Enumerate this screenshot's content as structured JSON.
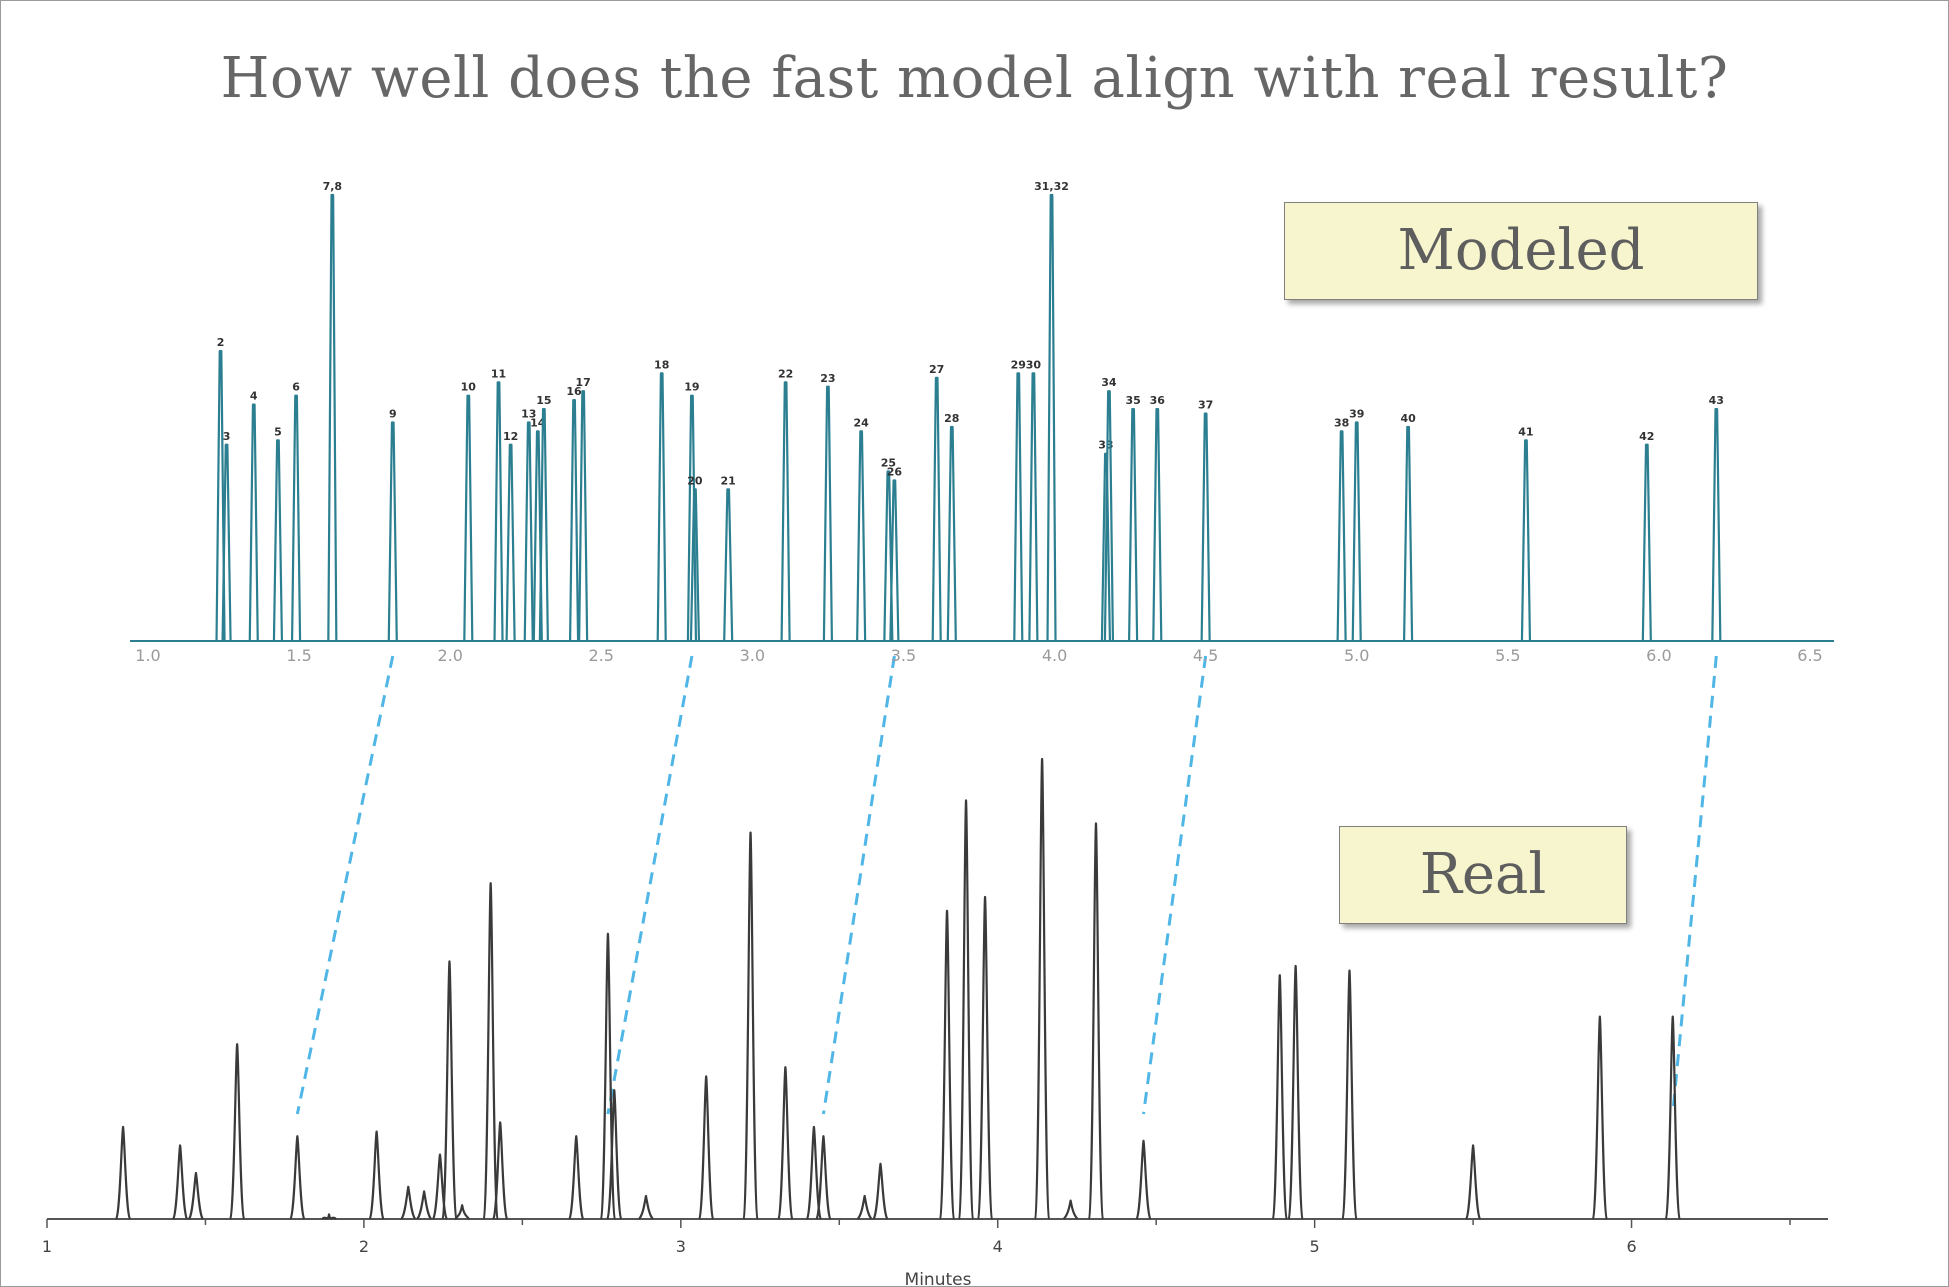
{
  "title": "How well does the fast model align with real result?",
  "modeled_label": "Modeled",
  "real_label": "Real",
  "colors": {
    "modeled": "#2b7f90",
    "real": "#3a3a3a",
    "connector": "#4fb6e6",
    "label_box": "#f7f5cd"
  },
  "chart_data": [
    {
      "name": "modeled",
      "type": "line",
      "title": "",
      "xlabel": "",
      "ylabel": "",
      "xlim": [
        1.0,
        6.5
      ],
      "ylim": [
        0,
        1
      ],
      "x_ticks": [
        "1.0",
        "1.5",
        "2.0",
        "2.5",
        "3.0",
        "3.5",
        "4.0",
        "4.5",
        "5.0",
        "5.5",
        "6.0",
        "6.5"
      ],
      "grid": false,
      "peaks": [
        {
          "label": "2",
          "x": 1.24,
          "y": 0.65
        },
        {
          "label": "3",
          "x": 1.26,
          "y": 0.44
        },
        {
          "label": "4",
          "x": 1.35,
          "y": 0.53
        },
        {
          "label": "5",
          "x": 1.43,
          "y": 0.45
        },
        {
          "label": "6",
          "x": 1.49,
          "y": 0.55
        },
        {
          "label": "7,8",
          "x": 1.61,
          "y": 1.0
        },
        {
          "label": "9",
          "x": 1.81,
          "y": 0.49
        },
        {
          "label": "10",
          "x": 2.06,
          "y": 0.55
        },
        {
          "label": "11",
          "x": 2.16,
          "y": 0.58
        },
        {
          "label": "12",
          "x": 2.2,
          "y": 0.44
        },
        {
          "label": "13",
          "x": 2.26,
          "y": 0.49
        },
        {
          "label": "14",
          "x": 2.29,
          "y": 0.47
        },
        {
          "label": "15",
          "x": 2.31,
          "y": 0.52
        },
        {
          "label": "16",
          "x": 2.41,
          "y": 0.54
        },
        {
          "label": "17",
          "x": 2.44,
          "y": 0.56
        },
        {
          "label": "18",
          "x": 2.7,
          "y": 0.6
        },
        {
          "label": "19",
          "x": 2.8,
          "y": 0.55
        },
        {
          "label": "20",
          "x": 2.81,
          "y": 0.34
        },
        {
          "label": "21",
          "x": 2.92,
          "y": 0.34
        },
        {
          "label": "22",
          "x": 3.11,
          "y": 0.58
        },
        {
          "label": "23",
          "x": 3.25,
          "y": 0.57
        },
        {
          "label": "24",
          "x": 3.36,
          "y": 0.47
        },
        {
          "label": "25",
          "x": 3.45,
          "y": 0.38
        },
        {
          "label": "26",
          "x": 3.47,
          "y": 0.36
        },
        {
          "label": "27",
          "x": 3.61,
          "y": 0.59
        },
        {
          "label": "28",
          "x": 3.66,
          "y": 0.48
        },
        {
          "label": "29",
          "x": 3.88,
          "y": 0.6
        },
        {
          "label": "30",
          "x": 3.93,
          "y": 0.6
        },
        {
          "label": "31,32",
          "x": 3.99,
          "y": 1.0
        },
        {
          "label": "33",
          "x": 4.17,
          "y": 0.42
        },
        {
          "label": "34",
          "x": 4.18,
          "y": 0.56
        },
        {
          "label": "35",
          "x": 4.26,
          "y": 0.52
        },
        {
          "label": "36",
          "x": 4.34,
          "y": 0.52
        },
        {
          "label": "37",
          "x": 4.5,
          "y": 0.51
        },
        {
          "label": "38",
          "x": 4.95,
          "y": 0.47
        },
        {
          "label": "39",
          "x": 5.0,
          "y": 0.49
        },
        {
          "label": "40",
          "x": 5.17,
          "y": 0.48
        },
        {
          "label": "41",
          "x": 5.56,
          "y": 0.45
        },
        {
          "label": "42",
          "x": 5.96,
          "y": 0.44
        },
        {
          "label": "43",
          "x": 6.19,
          "y": 0.52
        }
      ]
    },
    {
      "name": "real",
      "type": "line",
      "title": "",
      "xlabel": "Minutes",
      "ylabel": "",
      "xlim": [
        1,
        6.5
      ],
      "ylim": [
        0,
        1
      ],
      "x_ticks": [
        "1",
        "2",
        "3",
        "4",
        "5",
        "6"
      ],
      "grid": false,
      "peaks": [
        {
          "x": 1.24,
          "y": 0.2
        },
        {
          "x": 1.42,
          "y": 0.16
        },
        {
          "x": 1.47,
          "y": 0.1
        },
        {
          "x": 1.6,
          "y": 0.38
        },
        {
          "x": 1.79,
          "y": 0.18
        },
        {
          "x": 1.89,
          "y": 0.01
        },
        {
          "x": 2.04,
          "y": 0.19
        },
        {
          "x": 2.14,
          "y": 0.07
        },
        {
          "x": 2.19,
          "y": 0.06
        },
        {
          "x": 2.24,
          "y": 0.14
        },
        {
          "x": 2.27,
          "y": 0.56
        },
        {
          "x": 2.31,
          "y": 0.03
        },
        {
          "x": 2.4,
          "y": 0.73
        },
        {
          "x": 2.43,
          "y": 0.21
        },
        {
          "x": 2.67,
          "y": 0.18
        },
        {
          "x": 2.77,
          "y": 0.62
        },
        {
          "x": 2.79,
          "y": 0.28
        },
        {
          "x": 2.89,
          "y": 0.05
        },
        {
          "x": 3.08,
          "y": 0.31
        },
        {
          "x": 3.22,
          "y": 0.84
        },
        {
          "x": 3.33,
          "y": 0.33
        },
        {
          "x": 3.42,
          "y": 0.2
        },
        {
          "x": 3.45,
          "y": 0.18
        },
        {
          "x": 3.58,
          "y": 0.05
        },
        {
          "x": 3.63,
          "y": 0.12
        },
        {
          "x": 3.84,
          "y": 0.67
        },
        {
          "x": 3.9,
          "y": 0.91
        },
        {
          "x": 3.96,
          "y": 0.7
        },
        {
          "x": 4.14,
          "y": 1.0
        },
        {
          "x": 4.23,
          "y": 0.04
        },
        {
          "x": 4.31,
          "y": 0.86
        },
        {
          "x": 4.46,
          "y": 0.17
        },
        {
          "x": 4.89,
          "y": 0.53
        },
        {
          "x": 4.94,
          "y": 0.55
        },
        {
          "x": 5.11,
          "y": 0.54
        },
        {
          "x": 5.5,
          "y": 0.16
        },
        {
          "x": 5.9,
          "y": 0.44
        },
        {
          "x": 6.13,
          "y": 0.44
        }
      ]
    }
  ],
  "connectors": [
    {
      "from_x": 1.81,
      "to_x": 1.79
    },
    {
      "from_x": 2.8,
      "to_x": 2.77
    },
    {
      "from_x": 3.47,
      "to_x": 3.45
    },
    {
      "from_x": 4.5,
      "to_x": 4.46
    },
    {
      "from_x": 6.19,
      "to_x": 6.13
    }
  ]
}
